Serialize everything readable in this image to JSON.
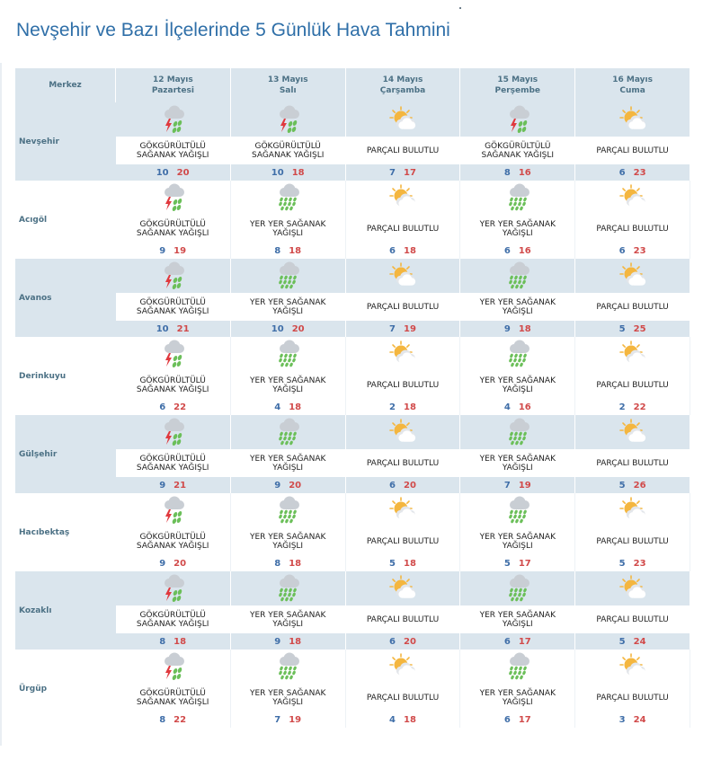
{
  "page": {
    "title": "Nevşehir ve Bazı İlçelerinde 5 Günlük Hava Tahmini"
  },
  "table": {
    "center_header": "Merkez",
    "days": [
      {
        "date": "12 Mayıs",
        "weekday": "Pazartesi"
      },
      {
        "date": "13 Mayıs",
        "weekday": "Salı"
      },
      {
        "date": "14 Mayıs",
        "weekday": "Çarşamba"
      },
      {
        "date": "15 Mayıs",
        "weekday": "Perşembe"
      },
      {
        "date": "16 Mayıs",
        "weekday": "Cuma"
      }
    ],
    "rows": [
      {
        "name": "Nevşehir",
        "cells": [
          {
            "icon": "thunderstorm-shower-icon",
            "desc1": "GÖKGÜRÜLTÜLÜ",
            "desc2": "SAĞANAK YAĞIŞLI",
            "min": "10",
            "max": "20"
          },
          {
            "icon": "thunderstorm-shower-icon",
            "desc1": "GÖKGÜRÜLTÜLÜ",
            "desc2": "SAĞANAK YAĞIŞLI",
            "min": "10",
            "max": "18"
          },
          {
            "icon": "partly-cloudy-icon",
            "desc1": "PARÇALI BULUTLU",
            "desc2": "",
            "min": "7",
            "max": "17"
          },
          {
            "icon": "thunderstorm-shower-icon",
            "desc1": "GÖKGÜRÜLTÜLÜ",
            "desc2": "SAĞANAK YAĞIŞLI",
            "min": "8",
            "max": "16"
          },
          {
            "icon": "partly-cloudy-icon",
            "desc1": "PARÇALI BULUTLU",
            "desc2": "",
            "min": "6",
            "max": "23"
          }
        ]
      },
      {
        "name": "Acıgöl",
        "cells": [
          {
            "icon": "thunderstorm-shower-icon",
            "desc1": "GÖKGÜRÜLTÜLÜ",
            "desc2": "SAĞANAK YAĞIŞLI",
            "min": "9",
            "max": "19"
          },
          {
            "icon": "local-shower-icon",
            "desc1": "YER YER SAĞANAK",
            "desc2": "YAĞIŞLI",
            "min": "8",
            "max": "18"
          },
          {
            "icon": "partly-cloudy-icon",
            "desc1": "PARÇALI BULUTLU",
            "desc2": "",
            "min": "6",
            "max": "18"
          },
          {
            "icon": "local-shower-icon",
            "desc1": "YER YER SAĞANAK",
            "desc2": "YAĞIŞLI",
            "min": "6",
            "max": "16"
          },
          {
            "icon": "partly-cloudy-icon",
            "desc1": "PARÇALI BULUTLU",
            "desc2": "",
            "min": "6",
            "max": "23"
          }
        ]
      },
      {
        "name": "Avanos",
        "cells": [
          {
            "icon": "thunderstorm-shower-icon",
            "desc1": "GÖKGÜRÜLTÜLÜ",
            "desc2": "SAĞANAK YAĞIŞLI",
            "min": "10",
            "max": "21"
          },
          {
            "icon": "local-shower-icon",
            "desc1": "YER YER SAĞANAK",
            "desc2": "YAĞIŞLI",
            "min": "10",
            "max": "20"
          },
          {
            "icon": "partly-cloudy-icon",
            "desc1": "PARÇALI BULUTLU",
            "desc2": "",
            "min": "7",
            "max": "19"
          },
          {
            "icon": "local-shower-icon",
            "desc1": "YER YER SAĞANAK",
            "desc2": "YAĞIŞLI",
            "min": "9",
            "max": "18"
          },
          {
            "icon": "partly-cloudy-icon",
            "desc1": "PARÇALI BULUTLU",
            "desc2": "",
            "min": "5",
            "max": "25"
          }
        ]
      },
      {
        "name": "Derinkuyu",
        "cells": [
          {
            "icon": "thunderstorm-shower-icon",
            "desc1": "GÖKGÜRÜLTÜLÜ",
            "desc2": "SAĞANAK YAĞIŞLI",
            "min": "6",
            "max": "22"
          },
          {
            "icon": "local-shower-icon",
            "desc1": "YER YER SAĞANAK",
            "desc2": "YAĞIŞLI",
            "min": "4",
            "max": "18"
          },
          {
            "icon": "partly-cloudy-icon",
            "desc1": "PARÇALI BULUTLU",
            "desc2": "",
            "min": "2",
            "max": "18"
          },
          {
            "icon": "local-shower-icon",
            "desc1": "YER YER SAĞANAK",
            "desc2": "YAĞIŞLI",
            "min": "4",
            "max": "16"
          },
          {
            "icon": "partly-cloudy-icon",
            "desc1": "PARÇALI BULUTLU",
            "desc2": "",
            "min": "2",
            "max": "22"
          }
        ]
      },
      {
        "name": "Gülşehir",
        "cells": [
          {
            "icon": "thunderstorm-shower-icon",
            "desc1": "GÖKGÜRÜLTÜLÜ",
            "desc2": "SAĞANAK YAĞIŞLI",
            "min": "9",
            "max": "21"
          },
          {
            "icon": "local-shower-icon",
            "desc1": "YER YER SAĞANAK",
            "desc2": "YAĞIŞLI",
            "min": "9",
            "max": "20"
          },
          {
            "icon": "partly-cloudy-icon",
            "desc1": "PARÇALI BULUTLU",
            "desc2": "",
            "min": "6",
            "max": "20"
          },
          {
            "icon": "local-shower-icon",
            "desc1": "YER YER SAĞANAK",
            "desc2": "YAĞIŞLI",
            "min": "7",
            "max": "19"
          },
          {
            "icon": "partly-cloudy-icon",
            "desc1": "PARÇALI BULUTLU",
            "desc2": "",
            "min": "5",
            "max": "26"
          }
        ]
      },
      {
        "name": "Hacıbektaş",
        "cells": [
          {
            "icon": "thunderstorm-shower-icon",
            "desc1": "GÖKGÜRÜLTÜLÜ",
            "desc2": "SAĞANAK YAĞIŞLI",
            "min": "9",
            "max": "20"
          },
          {
            "icon": "local-shower-icon",
            "desc1": "YER YER SAĞANAK",
            "desc2": "YAĞIŞLI",
            "min": "8",
            "max": "18"
          },
          {
            "icon": "partly-cloudy-icon",
            "desc1": "PARÇALI BULUTLU",
            "desc2": "",
            "min": "5",
            "max": "18"
          },
          {
            "icon": "local-shower-icon",
            "desc1": "YER YER SAĞANAK",
            "desc2": "YAĞIŞLI",
            "min": "5",
            "max": "17"
          },
          {
            "icon": "partly-cloudy-icon",
            "desc1": "PARÇALI BULUTLU",
            "desc2": "",
            "min": "5",
            "max": "23"
          }
        ]
      },
      {
        "name": "Kozaklı",
        "cells": [
          {
            "icon": "thunderstorm-shower-icon",
            "desc1": "GÖKGÜRÜLTÜLÜ",
            "desc2": "SAĞANAK YAĞIŞLI",
            "min": "8",
            "max": "18"
          },
          {
            "icon": "local-shower-icon",
            "desc1": "YER YER SAĞANAK",
            "desc2": "YAĞIŞLI",
            "min": "9",
            "max": "18"
          },
          {
            "icon": "partly-cloudy-icon",
            "desc1": "PARÇALI BULUTLU",
            "desc2": "",
            "min": "6",
            "max": "20"
          },
          {
            "icon": "local-shower-icon",
            "desc1": "YER YER SAĞANAK",
            "desc2": "YAĞIŞLI",
            "min": "6",
            "max": "17"
          },
          {
            "icon": "partly-cloudy-icon",
            "desc1": "PARÇALI BULUTLU",
            "desc2": "",
            "min": "5",
            "max": "24"
          }
        ]
      },
      {
        "name": "Ürgüp",
        "cells": [
          {
            "icon": "thunderstorm-shower-icon",
            "desc1": "GÖKGÜRÜLTÜLÜ",
            "desc2": "SAĞANAK YAĞIŞLI",
            "min": "8",
            "max": "22"
          },
          {
            "icon": "local-shower-icon",
            "desc1": "YER YER SAĞANAK",
            "desc2": "YAĞIŞLI",
            "min": "7",
            "max": "19"
          },
          {
            "icon": "partly-cloudy-icon",
            "desc1": "PARÇALI BULUTLU",
            "desc2": "",
            "min": "4",
            "max": "18"
          },
          {
            "icon": "local-shower-icon",
            "desc1": "YER YER SAĞANAK",
            "desc2": "YAĞIŞLI",
            "min": "6",
            "max": "17"
          },
          {
            "icon": "partly-cloudy-icon",
            "desc1": "PARÇALI BULUTLU",
            "desc2": "",
            "min": "3",
            "max": "24"
          }
        ]
      }
    ]
  },
  "colors": {
    "title": "#2f6fa8",
    "header_bg": "#dae5ed",
    "header_text": "#4c7185",
    "min_temp": "#3f6ea8",
    "max_temp": "#d14a4a",
    "sun": "#f4b63f",
    "rain": "#6bbf59",
    "lightning": "#e0393e",
    "cloud": "#c9ced4"
  }
}
